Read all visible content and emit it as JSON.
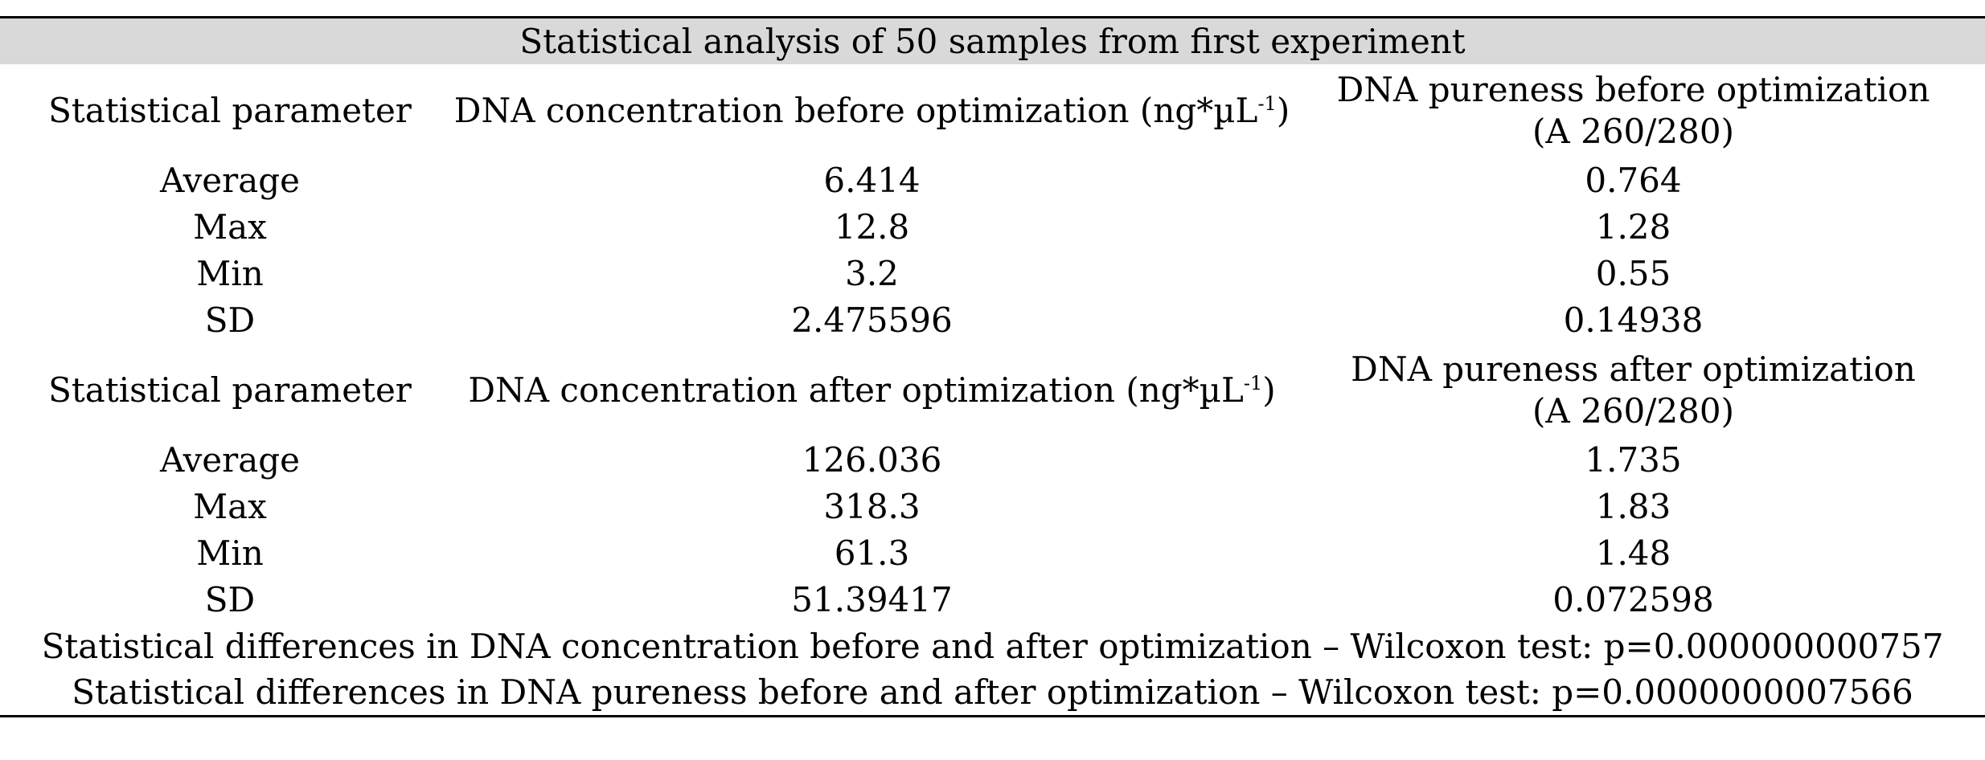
{
  "table": {
    "title": "Statistical analysis of 50 samples from first experiment",
    "sections": [
      {
        "headers": {
          "col1": "Statistical parameter",
          "col2_main": "DNA concentration before optimization (ng*µL",
          "col2_sup": "-1",
          "col2_end": ")",
          "col3_line1": "DNA pureness before optimization",
          "col3_line2": "(A 260/280)"
        },
        "rows": [
          {
            "param": "Average",
            "conc": "6.414",
            "purity": "0.764"
          },
          {
            "param": "Max",
            "conc": "12.8",
            "purity": "1.28"
          },
          {
            "param": "Min",
            "conc": "3.2",
            "purity": "0.55"
          },
          {
            "param": "SD",
            "conc": "2.475596",
            "purity": "0.14938"
          }
        ]
      },
      {
        "headers": {
          "col1": "Statistical parameter",
          "col2_main": "DNA concentration after optimization (ng*µL",
          "col2_sup": "-1",
          "col2_end": ")",
          "col3_line1": "DNA pureness after optimization",
          "col3_line2": "(A 260/280)"
        },
        "rows": [
          {
            "param": "Average",
            "conc": "126.036",
            "purity": "1.735"
          },
          {
            "param": "Max",
            "conc": "318.3",
            "purity": "1.83"
          },
          {
            "param": "Min",
            "conc": "61.3",
            "purity": "1.48"
          },
          {
            "param": "SD",
            "conc": "51.39417",
            "purity": "0.072598"
          }
        ]
      }
    ],
    "footer": [
      "Statistical differences in DNA concentration before and after optimization – Wilcoxon test: p=0.000000000757",
      "Statistical differences in DNA pureness before and after optimization – Wilcoxon test: p=0.0000000007566"
    ]
  }
}
